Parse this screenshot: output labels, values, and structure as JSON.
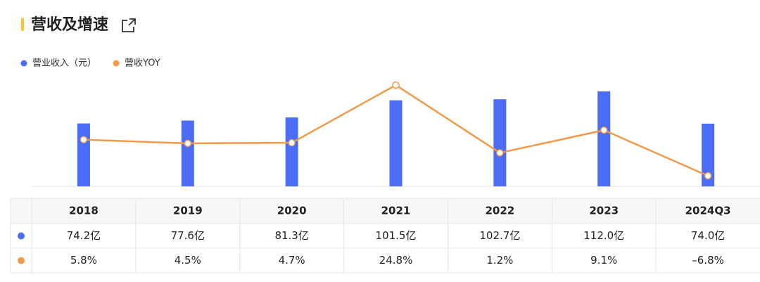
{
  "chart_data": {
    "type": "combo",
    "title": "营收及增速",
    "categories": [
      "2018",
      "2019",
      "2020",
      "2021",
      "2022",
      "2023",
      "2024Q3"
    ],
    "series": [
      {
        "name": "营业收入（元）",
        "color": "#4a6cf7",
        "type": "bar",
        "values": [
          74.2,
          77.6,
          81.3,
          101.5,
          102.7,
          112.0,
          74.0
        ],
        "value_labels": [
          "74.2亿",
          "77.6亿",
          "81.3亿",
          "101.5亿",
          "102.7亿",
          "112.0亿",
          "74.0亿"
        ]
      },
      {
        "name": "营收YOY",
        "color": "#f09a4a",
        "type": "line",
        "values": [
          5.8,
          4.5,
          4.7,
          24.8,
          1.2,
          9.1,
          -6.8
        ],
        "value_labels": [
          "5.8%",
          "4.5%",
          "4.7%",
          "24.8%",
          "1.2%",
          "9.1%",
          "–6.8%"
        ]
      }
    ]
  }
}
